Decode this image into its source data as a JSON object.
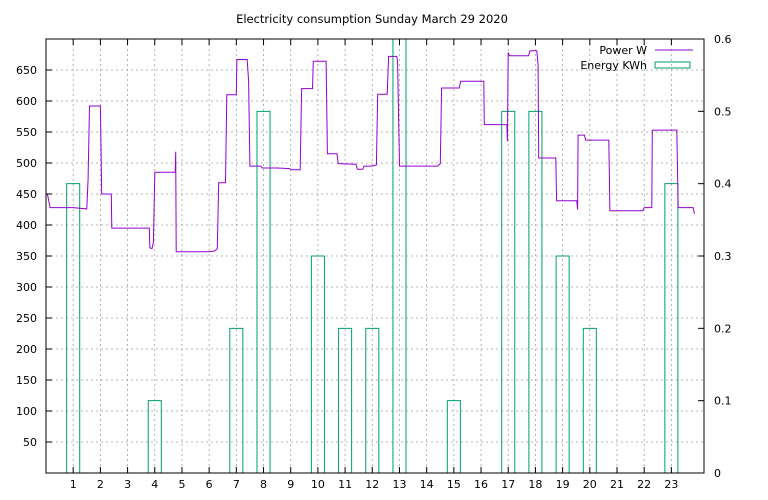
{
  "chart_data": {
    "type": "line",
    "title": "Electricity consumption Sunday March 29 2020",
    "x_ticks": [
      "1",
      "2",
      "3",
      "4",
      "5",
      "6",
      "7",
      "8",
      "9",
      "10",
      "11",
      "12",
      "13",
      "14",
      "15",
      "16",
      "17",
      "18",
      "19",
      "20",
      "21",
      "22",
      "23"
    ],
    "y_ticks": [
      "50",
      "100",
      "150",
      "200",
      "250",
      "300",
      "350",
      "400",
      "450",
      "500",
      "550",
      "600",
      "650"
    ],
    "y2_ticks": [
      "0",
      "0.1",
      "0.2",
      "0.3",
      "0.4",
      "0.5",
      "0.6"
    ],
    "xlim": [
      0,
      24.2
    ],
    "ylim": [
      0,
      700
    ],
    "y2lim": [
      0,
      0.6
    ],
    "grid": true,
    "legend_position": "top-right",
    "colors": {
      "power": "#9400d3",
      "energy": "#009e73"
    },
    "series": [
      {
        "name": "Power W",
        "type": "line",
        "axis": "left",
        "points": [
          [
            0.05,
            450
          ],
          [
            0.15,
            428
          ],
          [
            1.0,
            428
          ],
          [
            1.5,
            426
          ],
          [
            1.55,
            475
          ],
          [
            1.6,
            592
          ],
          [
            2.0,
            592
          ],
          [
            2.05,
            450
          ],
          [
            2.4,
            450
          ],
          [
            2.42,
            395
          ],
          [
            3.0,
            395
          ],
          [
            3.5,
            395
          ],
          [
            3.8,
            395
          ],
          [
            3.82,
            363
          ],
          [
            3.9,
            362
          ],
          [
            3.95,
            372
          ],
          [
            4.0,
            485
          ],
          [
            4.5,
            485
          ],
          [
            4.75,
            485
          ],
          [
            4.77,
            518
          ],
          [
            4.79,
            357
          ],
          [
            5.3,
            357
          ],
          [
            6.0,
            357
          ],
          [
            6.2,
            358
          ],
          [
            6.3,
            362
          ],
          [
            6.35,
            468
          ],
          [
            6.6,
            468
          ],
          [
            6.65,
            610
          ],
          [
            7.0,
            610
          ],
          [
            7.02,
            667
          ],
          [
            7.4,
            667
          ],
          [
            7.45,
            632
          ],
          [
            7.5,
            495
          ],
          [
            7.9,
            495
          ],
          [
            7.95,
            492
          ],
          [
            8.5,
            492
          ],
          [
            8.97,
            491
          ],
          [
            9.0,
            489
          ],
          [
            9.35,
            489
          ],
          [
            9.4,
            620
          ],
          [
            9.8,
            620
          ],
          [
            9.83,
            664
          ],
          [
            10.3,
            664
          ],
          [
            10.35,
            515
          ],
          [
            10.7,
            515
          ],
          [
            10.75,
            499
          ],
          [
            11.4,
            498
          ],
          [
            11.45,
            490
          ],
          [
            11.65,
            490
          ],
          [
            11.7,
            495
          ],
          [
            12.0,
            495
          ],
          [
            12.15,
            497
          ],
          [
            12.2,
            611
          ],
          [
            12.55,
            611
          ],
          [
            12.6,
            672
          ],
          [
            12.9,
            672
          ],
          [
            12.93,
            662
          ],
          [
            13.0,
            495
          ],
          [
            13.8,
            495
          ],
          [
            14.4,
            495
          ],
          [
            14.5,
            499
          ],
          [
            14.55,
            621
          ],
          [
            15.2,
            621
          ],
          [
            15.25,
            632
          ],
          [
            16.0,
            632
          ],
          [
            16.1,
            632
          ],
          [
            16.12,
            562
          ],
          [
            16.5,
            562
          ],
          [
            16.95,
            562
          ],
          [
            16.97,
            535
          ],
          [
            17.0,
            678
          ],
          [
            17.05,
            673
          ],
          [
            17.75,
            673
          ],
          [
            17.8,
            681
          ],
          [
            18.05,
            681
          ],
          [
            18.1,
            658
          ],
          [
            18.12,
            508
          ],
          [
            18.75,
            508
          ],
          [
            18.78,
            439
          ],
          [
            19.3,
            439
          ],
          [
            19.52,
            439
          ],
          [
            19.55,
            425
          ],
          [
            19.57,
            545
          ],
          [
            19.8,
            545
          ],
          [
            19.85,
            537
          ],
          [
            20.7,
            537
          ],
          [
            20.74,
            423
          ],
          [
            21.3,
            423
          ],
          [
            21.95,
            423
          ],
          [
            22.0,
            428
          ],
          [
            22.28,
            428
          ],
          [
            22.3,
            553
          ],
          [
            23.2,
            553
          ],
          [
            23.25,
            428
          ],
          [
            23.8,
            428
          ],
          [
            23.85,
            418
          ]
        ]
      },
      {
        "name": "Energy KWh",
        "type": "bar",
        "axis": "right",
        "hours": [
          1,
          4,
          7,
          8,
          10,
          11,
          12,
          13,
          15,
          17,
          18,
          19,
          20,
          23
        ],
        "values": [
          0.4,
          0.1,
          0.2,
          0.5,
          0.3,
          0.2,
          0.2,
          0.6,
          0.1,
          0.5,
          0.5,
          0.3,
          0.2,
          0.4
        ]
      }
    ]
  }
}
